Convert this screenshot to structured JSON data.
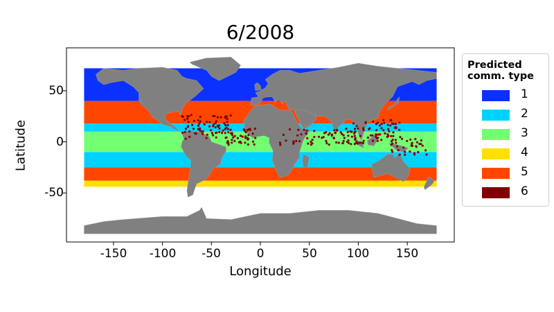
{
  "chart_data": {
    "type": "map",
    "title": "6/2008",
    "xlabel": "Longitude",
    "ylabel": "Latitude",
    "xlim": [
      -198,
      198
    ],
    "ylim": [
      -98,
      92
    ],
    "xticks": [
      -150,
      -100,
      -50,
      0,
      50,
      100,
      150
    ],
    "yticks": [
      50,
      0,
      -50
    ],
    "land_color": "#808080",
    "legend": {
      "title": "Predicted\ncomm. type",
      "placement": "right, outside plot",
      "entries": [
        {
          "label": "1",
          "color": "#0a31ff"
        },
        {
          "label": "2",
          "color": "#00d2ff"
        },
        {
          "label": "3",
          "color": "#72ff72"
        },
        {
          "label": "4",
          "color": "#ffe000"
        },
        {
          "label": "5",
          "color": "#ff4600"
        },
        {
          "label": "6",
          "color": "#800000"
        }
      ]
    },
    "bands": [
      {
        "type": "1",
        "lat": [
          40,
          72
        ]
      },
      {
        "type": "5",
        "lat": [
          18,
          40
        ]
      },
      {
        "type": "2",
        "lat": [
          10,
          18
        ]
      },
      {
        "type": "3",
        "lat": [
          -10,
          10
        ]
      },
      {
        "type": "2",
        "lat": [
          -25,
          -10
        ]
      },
      {
        "type": "5",
        "lat": [
          -38,
          -25
        ]
      },
      {
        "type": "4",
        "lat": [
          -44,
          -38
        ]
      }
    ]
  }
}
